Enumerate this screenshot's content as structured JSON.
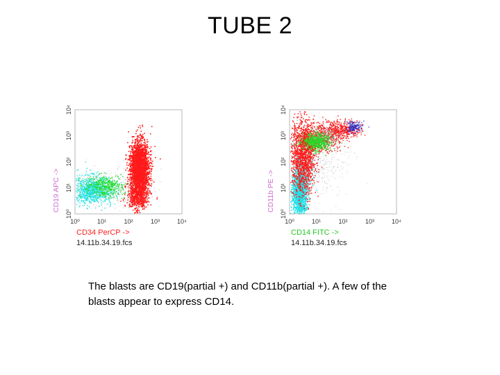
{
  "slide": {
    "title": "TUBE 2",
    "caption": "The blasts are CD19(partial +) and CD11b(partial +). A few of the blasts appear to express CD14."
  },
  "colors": {
    "red": "#ff1a1a",
    "green": "#22dd22",
    "cyan": "#22e0e6",
    "blue": "#3030c0",
    "ylabel": "#d070d0",
    "xlabel": "#ff2020",
    "xlabel_right": "#22cc22"
  },
  "plots": [
    {
      "tick_labels": [
        "10⁰",
        "10¹",
        "10²",
        "10³",
        "10⁴"
      ],
      "ylabel": "CD19 APC ->",
      "xlabel": "CD34 PerCP ->",
      "filename": "14.11b.34.19.fcs"
    },
    {
      "tick_labels": [
        "10⁰",
        "10¹",
        "10²",
        "10³",
        "10⁴"
      ],
      "ylabel": "CD11b PE ->",
      "xlabel": "CD14 FITC ->",
      "filename": "14.11b.34.19.fcs"
    }
  ]
}
